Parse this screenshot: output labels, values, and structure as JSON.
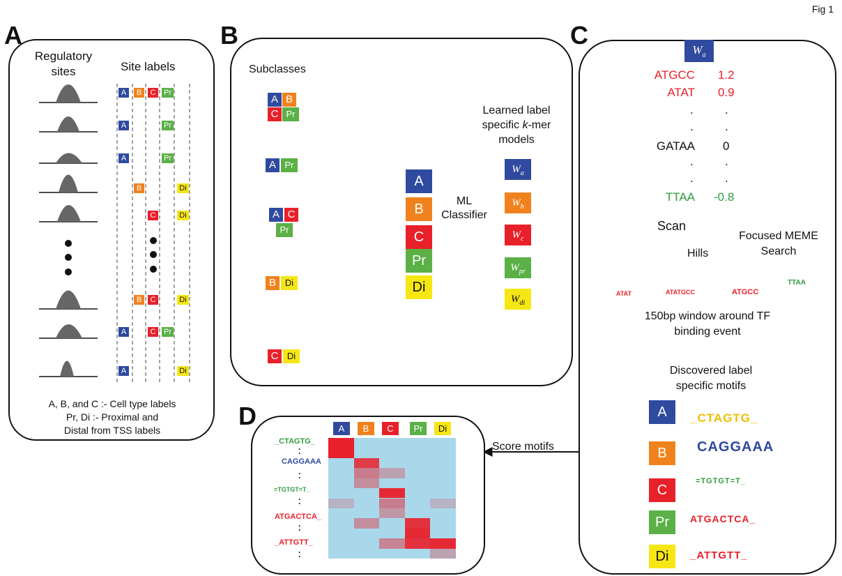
{
  "fig_label": "Fig 1",
  "panels": {
    "a": {
      "letter": "A",
      "title_line1": "Regulatory",
      "title_line2": "sites",
      "labels_title": "Site labels",
      "legend_line1": "A, B, and C :- Cell type labels",
      "legend_line2": "Pr, Di :- Proximal and",
      "legend_line3": "Distal from TSS labels"
    },
    "b": {
      "letter": "B",
      "subclasses_title": "Subclasses",
      "learned_line1": "Learned label",
      "learned_line2": "specific",
      "learned_kmer": "k",
      "learned_mer": "-mer",
      "learned_line3": "models",
      "ml_line1": "ML",
      "ml_line2": "Classifier"
    },
    "c": {
      "letter": "C",
      "weight_header": "W",
      "weight_header_sub": "a",
      "kmers": [
        {
          "kmer": "ATGCC",
          "score": "1.2"
        },
        {
          "kmer": "ATAT",
          "score": "0.9"
        },
        {
          "kmer": "GATAA",
          "score": "0"
        },
        {
          "kmer": "TTAA",
          "score": "-0.8"
        }
      ],
      "dot": ".",
      "scan": "Scan",
      "focused_line1": "Focused MEME",
      "focused_line2": "Search",
      "hills": "Hills",
      "site_atat": "ATAT",
      "site_atatgcc": "ATATGCC",
      "site_atgcc": "ATGCC",
      "site_ttaa": "TTAA",
      "window_line1": "150bp window around TF",
      "window_line2": "binding event",
      "discovered_line1": "Discovered label",
      "discovered_line2": "specific motifs",
      "motifs": [
        {
          "label": "A",
          "seq": "_CTAGTG_"
        },
        {
          "label": "B",
          "seq": "CAGGAAA"
        },
        {
          "label": "C",
          "seq": "=TGTGT=T_"
        },
        {
          "label": "Pr",
          "seq": "ATGACTCA_"
        },
        {
          "label": "Di",
          "seq": "_ATTGTT_"
        }
      ]
    },
    "d": {
      "letter": "D",
      "score_label": "Score motifs",
      "motif_rows": [
        "_CTAGTG_",
        "CAGGAAA",
        "=TGTGT=T_",
        "ATGACTCA_",
        "_ATTGTT_"
      ]
    }
  },
  "labels": {
    "a": "A",
    "b": "B",
    "c": "C",
    "pr": "Pr",
    "di": "Di"
  },
  "w_models": [
    {
      "w": "W",
      "sub": "a"
    },
    {
      "w": "W",
      "sub": "b"
    },
    {
      "w": "W",
      "sub": "c"
    },
    {
      "w": "W",
      "sub": "pr"
    },
    {
      "w": "W",
      "sub": "di"
    }
  ],
  "heatmap": {
    "columns": [
      "A",
      "B",
      "C",
      "Pr",
      "Di"
    ],
    "intensity": [
      [
        1.0,
        0,
        0,
        0,
        0
      ],
      [
        1.0,
        0,
        0,
        0,
        0
      ],
      [
        0,
        0.85,
        0,
        0,
        0
      ],
      [
        0,
        0.5,
        0.3,
        0,
        0
      ],
      [
        0,
        0.4,
        0,
        0,
        0
      ],
      [
        0,
        0,
        0.95,
        0,
        0
      ],
      [
        0.2,
        0,
        0.5,
        0,
        0.2
      ],
      [
        0,
        0,
        0.35,
        0,
        0
      ],
      [
        0,
        0.4,
        0,
        0.9,
        0
      ],
      [
        0,
        0,
        0,
        0.95,
        0
      ],
      [
        0,
        0,
        0.45,
        0.9,
        0.95
      ],
      [
        0,
        0,
        0,
        0,
        0.3
      ]
    ]
  },
  "colors": {
    "a": "#2f4a9e",
    "b": "#f0821e",
    "c": "#e8202a",
    "pr": "#5bb046",
    "di": "#f5e614",
    "heat_bg": "#a9d8eb"
  }
}
